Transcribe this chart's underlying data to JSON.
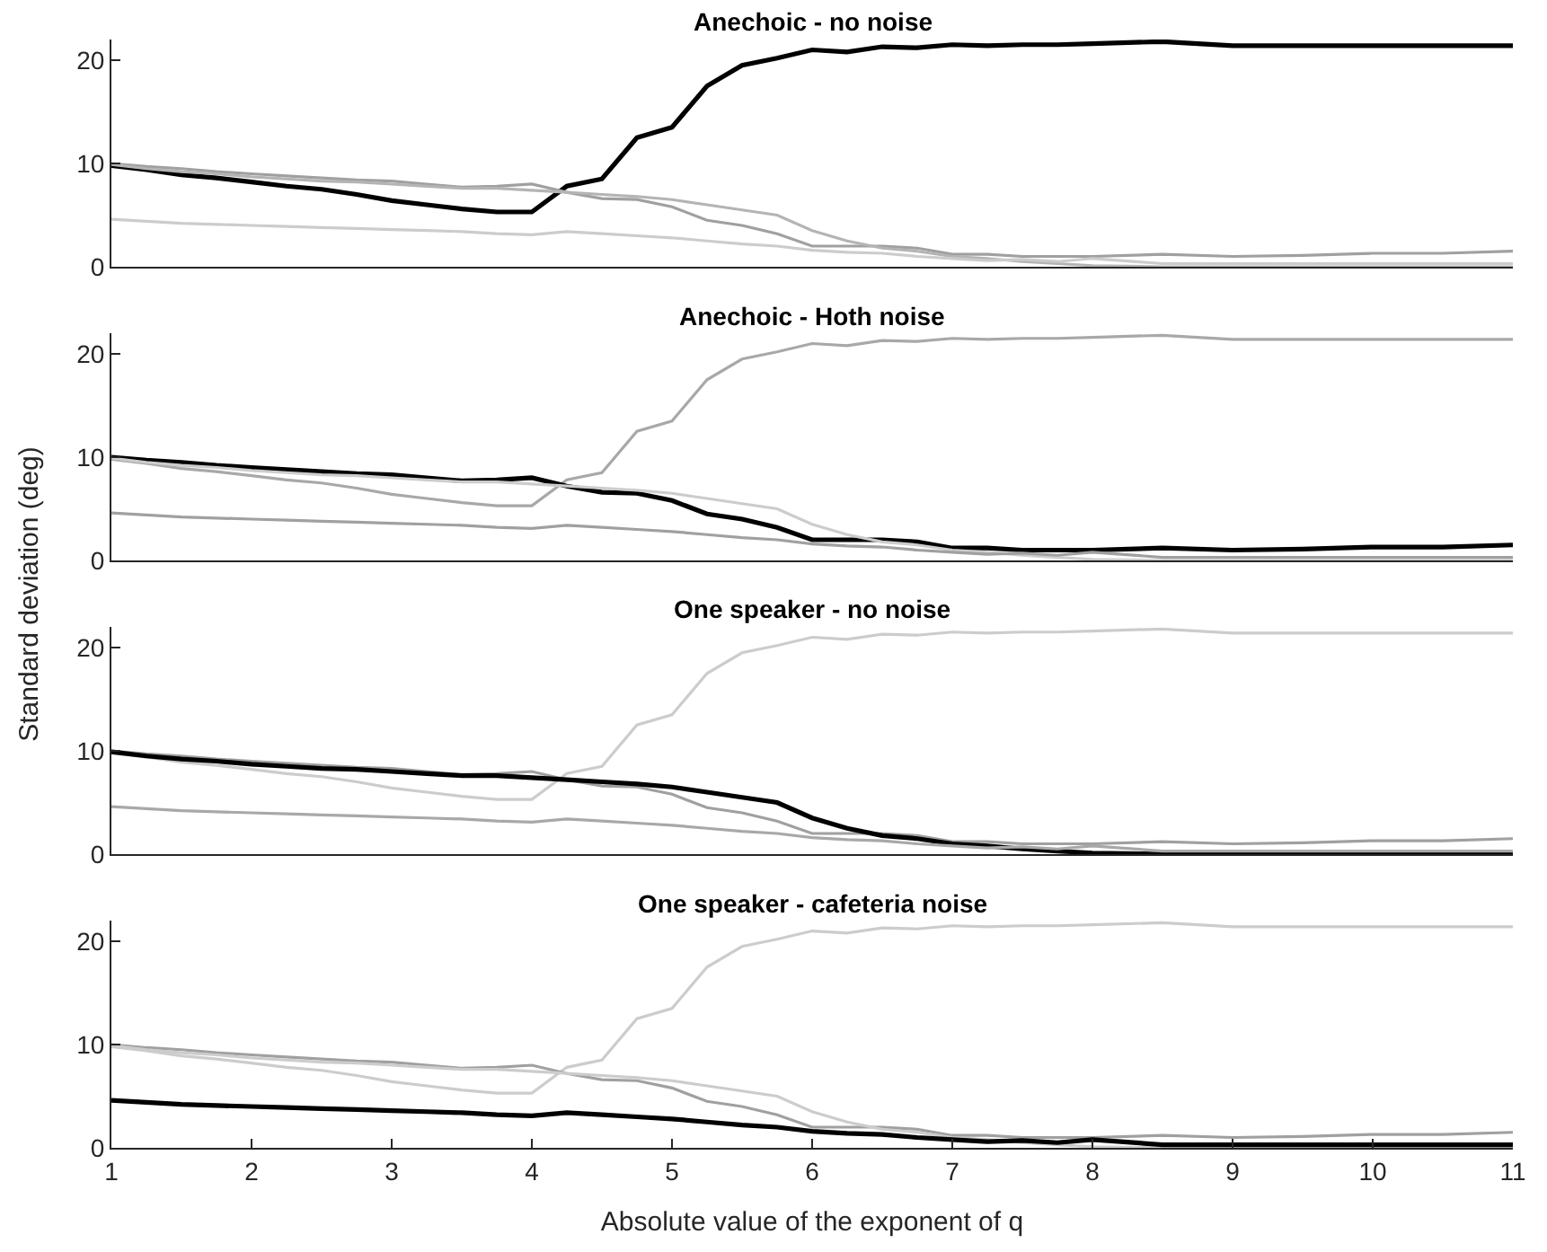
{
  "chart_data": [
    {
      "type": "line",
      "title": "Anechoic - no noise",
      "x": [
        1,
        1.25,
        1.5,
        1.75,
        2,
        2.25,
        2.5,
        2.75,
        3,
        3.25,
        3.5,
        3.75,
        4,
        4.25,
        4.5,
        4.75,
        5,
        5.25,
        5.5,
        5.75,
        6,
        6.25,
        6.5,
        6.75,
        7,
        7.25,
        7.5,
        7.75,
        8,
        8.5,
        9,
        9.5,
        10,
        10.5,
        11
      ],
      "xlim": [
        1,
        11
      ],
      "ylim": [
        0,
        22
      ],
      "yticks": [
        0,
        10,
        20
      ],
      "tick_labels": "y",
      "series": [
        {
          "color": "#000000",
          "values": [
            9.8,
            9.4,
            8.9,
            8.6,
            8.2,
            7.8,
            7.5,
            7.0,
            6.4,
            6.0,
            5.6,
            5.3,
            5.3,
            7.8,
            8.5,
            12.5,
            13.5,
            17.5,
            19.5,
            20.2,
            21.0,
            20.8,
            21.3,
            21.2,
            21.5,
            21.4,
            21.5,
            21.5,
            21.6,
            21.8,
            21.4,
            21.4,
            21.4,
            21.4,
            21.4
          ]
        },
        {
          "color": "#a0a0a0",
          "values": [
            10.0,
            9.7,
            9.5,
            9.2,
            9.0,
            8.8,
            8.6,
            8.4,
            8.3,
            8.0,
            7.7,
            7.8,
            8.0,
            7.2,
            6.6,
            6.5,
            5.8,
            4.5,
            4.0,
            3.2,
            2.0,
            2.0,
            2.0,
            1.8,
            1.2,
            1.2,
            1.0,
            1.0,
            1.0,
            1.2,
            1.0,
            1.1,
            1.3,
            1.3,
            1.5
          ]
        },
        {
          "color": "#b4b4b4",
          "values": [
            9.9,
            9.5,
            9.2,
            9.0,
            8.7,
            8.5,
            8.3,
            8.2,
            8.0,
            7.8,
            7.6,
            7.6,
            7.4,
            7.2,
            7.0,
            6.8,
            6.5,
            6.0,
            5.5,
            5.0,
            3.5,
            2.5,
            1.8,
            1.5,
            1.0,
            0.8,
            0.5,
            0.3,
            0.1,
            0,
            0,
            0,
            0,
            0,
            0
          ]
        },
        {
          "color": "#cccccc",
          "values": [
            4.6,
            4.4,
            4.2,
            4.1,
            4.0,
            3.9,
            3.8,
            3.7,
            3.6,
            3.5,
            3.4,
            3.2,
            3.1,
            3.4,
            3.2,
            3.0,
            2.8,
            2.5,
            2.2,
            2.0,
            1.6,
            1.4,
            1.3,
            1.0,
            0.8,
            0.6,
            0.7,
            0.5,
            0.8,
            0.3,
            0.3,
            0.3,
            0.3,
            0.3,
            0.3
          ]
        }
      ]
    },
    {
      "type": "line",
      "title": "Anechoic - Hoth noise",
      "ylabel": "Standard deviation (deg)",
      "x": [
        1,
        1.25,
        1.5,
        1.75,
        2,
        2.25,
        2.5,
        2.75,
        3,
        3.25,
        3.5,
        3.75,
        4,
        4.25,
        4.5,
        4.75,
        5,
        5.25,
        5.5,
        5.75,
        6,
        6.25,
        6.5,
        6.75,
        7,
        7.25,
        7.5,
        7.75,
        8,
        8.5,
        9,
        9.5,
        10,
        10.5,
        11
      ],
      "xlim": [
        1,
        11
      ],
      "ylim": [
        0,
        22
      ],
      "yticks": [
        0,
        10,
        20
      ],
      "tick_labels": "y",
      "series": [
        {
          "color": "#a8a8a8",
          "values": [
            9.8,
            9.4,
            8.9,
            8.6,
            8.2,
            7.8,
            7.5,
            7.0,
            6.4,
            6.0,
            5.6,
            5.3,
            5.3,
            7.8,
            8.5,
            12.5,
            13.5,
            17.5,
            19.5,
            20.2,
            21.0,
            20.8,
            21.3,
            21.2,
            21.5,
            21.4,
            21.5,
            21.5,
            21.6,
            21.8,
            21.4,
            21.4,
            21.4,
            21.4,
            21.4
          ]
        },
        {
          "color": "#000000",
          "values": [
            10.0,
            9.7,
            9.5,
            9.2,
            9.0,
            8.8,
            8.6,
            8.4,
            8.3,
            8.0,
            7.7,
            7.8,
            8.0,
            7.2,
            6.6,
            6.5,
            5.8,
            4.5,
            4.0,
            3.2,
            2.0,
            2.0,
            2.0,
            1.8,
            1.2,
            1.2,
            1.0,
            1.0,
            1.0,
            1.2,
            1.0,
            1.1,
            1.3,
            1.3,
            1.5
          ]
        },
        {
          "color": "#cccccc",
          "values": [
            9.9,
            9.5,
            9.2,
            9.0,
            8.7,
            8.5,
            8.3,
            8.2,
            8.0,
            7.8,
            7.6,
            7.6,
            7.4,
            7.2,
            7.0,
            6.8,
            6.5,
            6.0,
            5.5,
            5.0,
            3.5,
            2.5,
            1.8,
            1.5,
            1.0,
            0.8,
            0.5,
            0.3,
            0.1,
            0,
            0,
            0,
            0,
            0,
            0
          ]
        },
        {
          "color": "#a0a0a0",
          "values": [
            4.6,
            4.4,
            4.2,
            4.1,
            4.0,
            3.9,
            3.8,
            3.7,
            3.6,
            3.5,
            3.4,
            3.2,
            3.1,
            3.4,
            3.2,
            3.0,
            2.8,
            2.5,
            2.2,
            2.0,
            1.6,
            1.4,
            1.3,
            1.0,
            0.8,
            0.6,
            0.7,
            0.5,
            0.8,
            0.3,
            0.3,
            0.3,
            0.3,
            0.3,
            0.3
          ]
        }
      ]
    },
    {
      "type": "line",
      "title": "One speaker - no noise",
      "x": [
        1,
        1.25,
        1.5,
        1.75,
        2,
        2.25,
        2.5,
        2.75,
        3,
        3.25,
        3.5,
        3.75,
        4,
        4.25,
        4.5,
        4.75,
        5,
        5.25,
        5.5,
        5.75,
        6,
        6.25,
        6.5,
        6.75,
        7,
        7.25,
        7.5,
        7.75,
        8,
        8.5,
        9,
        9.5,
        10,
        10.5,
        11
      ],
      "xlim": [
        1,
        11
      ],
      "ylim": [
        0,
        22
      ],
      "yticks": [
        0,
        10,
        20
      ],
      "tick_labels": "y",
      "series": [
        {
          "color": "#cccccc",
          "values": [
            9.8,
            9.4,
            8.9,
            8.6,
            8.2,
            7.8,
            7.5,
            7.0,
            6.4,
            6.0,
            5.6,
            5.3,
            5.3,
            7.8,
            8.5,
            12.5,
            13.5,
            17.5,
            19.5,
            20.2,
            21.0,
            20.8,
            21.3,
            21.2,
            21.5,
            21.4,
            21.5,
            21.5,
            21.6,
            21.8,
            21.4,
            21.4,
            21.4,
            21.4,
            21.4
          ]
        },
        {
          "color": "#a0a0a0",
          "values": [
            10.0,
            9.7,
            9.5,
            9.2,
            9.0,
            8.8,
            8.6,
            8.4,
            8.3,
            8.0,
            7.7,
            7.8,
            8.0,
            7.2,
            6.6,
            6.5,
            5.8,
            4.5,
            4.0,
            3.2,
            2.0,
            2.0,
            2.0,
            1.8,
            1.2,
            1.2,
            1.0,
            1.0,
            1.0,
            1.2,
            1.0,
            1.1,
            1.3,
            1.3,
            1.5
          ]
        },
        {
          "color": "#000000",
          "values": [
            9.9,
            9.5,
            9.2,
            9.0,
            8.7,
            8.5,
            8.3,
            8.2,
            8.0,
            7.8,
            7.6,
            7.6,
            7.4,
            7.2,
            7.0,
            6.8,
            6.5,
            6.0,
            5.5,
            5.0,
            3.5,
            2.5,
            1.8,
            1.5,
            1.0,
            0.8,
            0.5,
            0.3,
            0.1,
            0,
            0,
            0,
            0,
            0,
            0
          ]
        },
        {
          "color": "#a8a8a8",
          "values": [
            4.6,
            4.4,
            4.2,
            4.1,
            4.0,
            3.9,
            3.8,
            3.7,
            3.6,
            3.5,
            3.4,
            3.2,
            3.1,
            3.4,
            3.2,
            3.0,
            2.8,
            2.5,
            2.2,
            2.0,
            1.6,
            1.4,
            1.3,
            1.0,
            0.8,
            0.6,
            0.7,
            0.5,
            0.8,
            0.3,
            0.3,
            0.3,
            0.3,
            0.3,
            0.3
          ]
        }
      ]
    },
    {
      "type": "line",
      "title": "One speaker - cafeteria noise",
      "xlabel": "Absolute value of the exponent of q",
      "x": [
        1,
        1.25,
        1.5,
        1.75,
        2,
        2.25,
        2.5,
        2.75,
        3,
        3.25,
        3.5,
        3.75,
        4,
        4.25,
        4.5,
        4.75,
        5,
        5.25,
        5.5,
        5.75,
        6,
        6.25,
        6.5,
        6.75,
        7,
        7.25,
        7.5,
        7.75,
        8,
        8.5,
        9,
        9.5,
        10,
        10.5,
        11
      ],
      "xlim": [
        1,
        11
      ],
      "xticks": [
        1,
        2,
        3,
        4,
        5,
        6,
        7,
        8,
        9,
        10,
        11
      ],
      "ylim": [
        0,
        22
      ],
      "yticks": [
        0,
        10,
        20
      ],
      "series": [
        {
          "color": "#cccccc",
          "values": [
            9.8,
            9.4,
            8.9,
            8.6,
            8.2,
            7.8,
            7.5,
            7.0,
            6.4,
            6.0,
            5.6,
            5.3,
            5.3,
            7.8,
            8.5,
            12.5,
            13.5,
            17.5,
            19.5,
            20.2,
            21.0,
            20.8,
            21.3,
            21.2,
            21.5,
            21.4,
            21.5,
            21.5,
            21.6,
            21.8,
            21.4,
            21.4,
            21.4,
            21.4,
            21.4
          ]
        },
        {
          "color": "#a0a0a0",
          "values": [
            10.0,
            9.7,
            9.5,
            9.2,
            9.0,
            8.8,
            8.6,
            8.4,
            8.3,
            8.0,
            7.7,
            7.8,
            8.0,
            7.2,
            6.6,
            6.5,
            5.8,
            4.5,
            4.0,
            3.2,
            2.0,
            2.0,
            2.0,
            1.8,
            1.2,
            1.2,
            1.0,
            1.0,
            1.0,
            1.2,
            1.0,
            1.1,
            1.3,
            1.3,
            1.5
          ]
        },
        {
          "color": "#cccccc",
          "values": [
            9.9,
            9.5,
            9.2,
            9.0,
            8.7,
            8.5,
            8.3,
            8.2,
            8.0,
            7.8,
            7.6,
            7.6,
            7.4,
            7.2,
            7.0,
            6.8,
            6.5,
            6.0,
            5.5,
            5.0,
            3.5,
            2.5,
            1.8,
            1.5,
            1.0,
            0.8,
            0.5,
            0.3,
            0.1,
            0,
            0,
            0,
            0,
            0,
            0
          ]
        },
        {
          "color": "#000000",
          "values": [
            4.6,
            4.4,
            4.2,
            4.1,
            4.0,
            3.9,
            3.8,
            3.7,
            3.6,
            3.5,
            3.4,
            3.2,
            3.1,
            3.4,
            3.2,
            3.0,
            2.8,
            2.5,
            2.2,
            2.0,
            1.6,
            1.4,
            1.3,
            1.0,
            0.8,
            0.6,
            0.7,
            0.5,
            0.8,
            0.3,
            0.3,
            0.3,
            0.3,
            0.3,
            0.3
          ]
        }
      ]
    }
  ]
}
